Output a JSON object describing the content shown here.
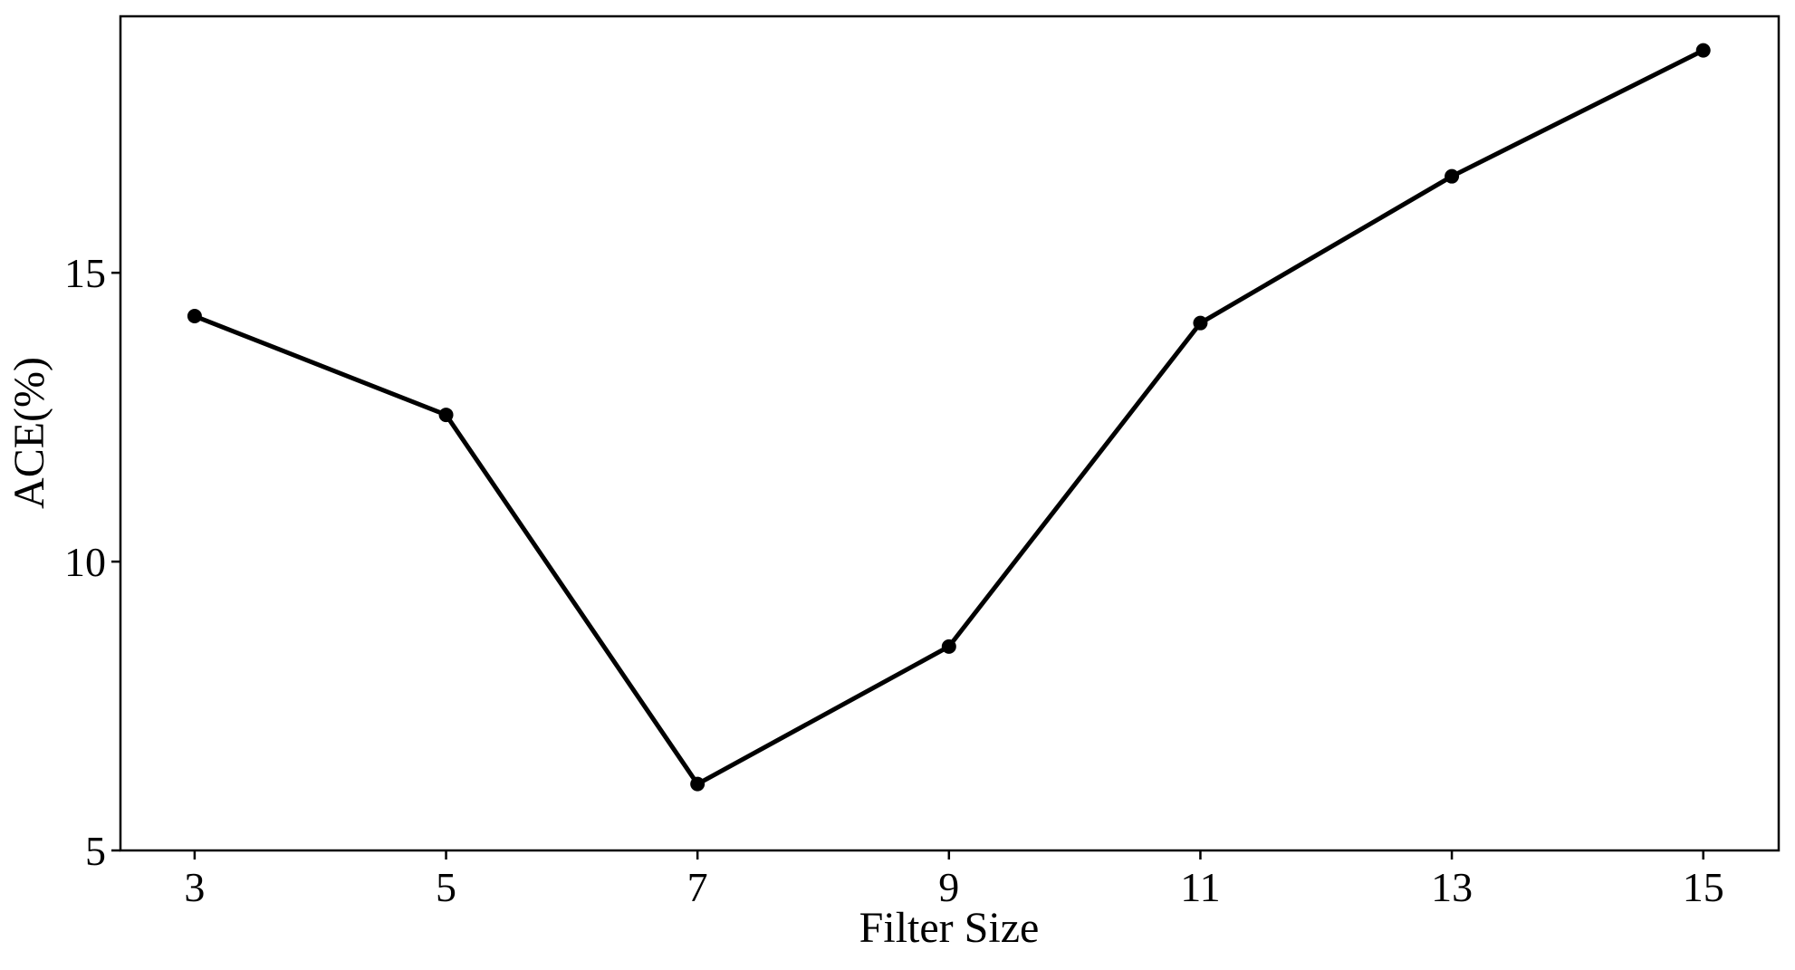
{
  "chart_data": {
    "type": "line",
    "x_label": "Filter Size",
    "y_label": "ACE(%)",
    "x": [
      3,
      5,
      7,
      9,
      11,
      13,
      15
    ],
    "series": [
      {
        "name": "ACE",
        "color": "#000000",
        "values": [
          14.25,
          12.54,
          6.15,
          8.53,
          14.13,
          16.67,
          18.85
        ]
      }
    ],
    "xlim": [
      2.41,
      15.6
    ],
    "xticks": [
      3,
      5,
      7,
      9,
      11,
      13,
      15
    ],
    "ylim": [
      5,
      19.44
    ],
    "yticks": [
      5,
      10,
      15
    ],
    "grid": false
  }
}
